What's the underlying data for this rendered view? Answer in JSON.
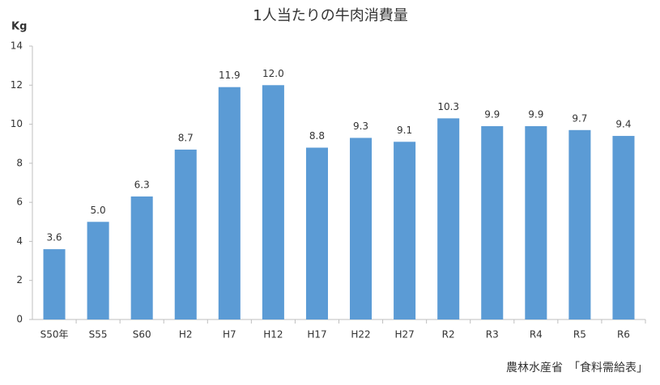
{
  "chart_data": {
    "type": "bar",
    "title": "1人当たりの牛肉消費量",
    "y_label": "Kg",
    "source": "農林水産省　「食料需給表」",
    "categories": [
      "S50年",
      "S55",
      "S60",
      "H2",
      "H7",
      "H12",
      "H17",
      "H22",
      "H27",
      "R2",
      "R3",
      "R4",
      "R5",
      "R6"
    ],
    "values": [
      3.6,
      5.0,
      6.3,
      8.7,
      11.9,
      12.0,
      8.8,
      9.3,
      9.1,
      10.3,
      9.9,
      9.9,
      9.7,
      9.4
    ],
    "value_labels": [
      "3.6",
      "5.0",
      "6.3",
      "8.7",
      "11.9",
      "12.0",
      "8.8",
      "9.3",
      "9.1",
      "10.3",
      "9.9",
      "9.9",
      "9.7",
      "9.4"
    ],
    "color": "#5b9bd5",
    "ylim": [
      0,
      14
    ],
    "yticks": [
      0,
      2,
      4,
      6,
      8,
      10,
      12,
      14
    ],
    "grid": false
  }
}
